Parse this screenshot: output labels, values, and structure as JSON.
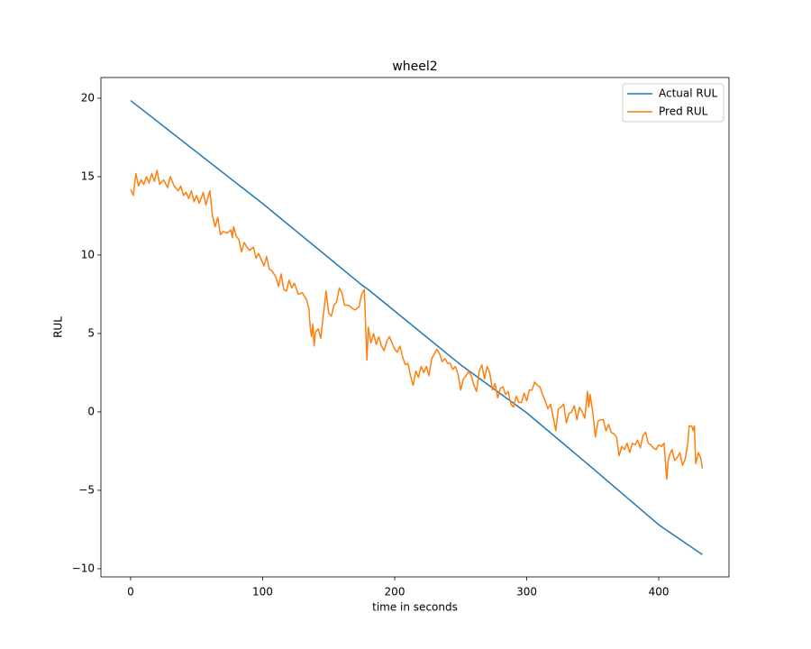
{
  "chart_data": {
    "type": "line",
    "title": "wheel2",
    "x_label": "time in seconds",
    "y_label": "RUL",
    "xlim": [
      -22.5,
      453.2
    ],
    "ylim": [
      -10.52,
      21.32
    ],
    "xticks": [
      0,
      100,
      200,
      300,
      400
    ],
    "yticks": [
      {
        "value": -10,
        "label": "−10"
      },
      {
        "value": -5,
        "label": "−5"
      },
      0,
      5,
      10,
      15,
      20
    ],
    "legend": "upper right",
    "series": [
      {
        "name": "Actual RUL",
        "color": "#1f77b4",
        "x": [
          0,
          100,
          175,
          180,
          250,
          300,
          350,
          400,
          433
        ],
        "values": [
          19.85,
          13.28,
          8.1,
          7.8,
          3.0,
          -0.06,
          -3.6,
          -7.2,
          -9.1
        ]
      },
      {
        "name": "Pred RUL",
        "color": "#ff7f0e",
        "x": [
          0,
          2,
          4,
          6,
          8,
          10,
          12,
          14,
          16,
          18,
          20,
          22,
          25,
          28,
          30,
          33,
          36,
          38,
          40,
          42,
          44,
          46,
          48,
          50,
          52,
          55,
          57,
          60,
          62,
          64,
          66,
          68,
          70,
          73,
          76,
          77,
          78,
          80,
          82,
          84,
          86,
          88,
          90,
          93,
          95,
          97,
          99,
          101,
          103,
          105,
          107,
          110,
          112,
          114,
          116,
          118,
          120,
          122,
          124,
          127,
          130,
          133,
          135,
          136,
          137,
          138,
          139,
          140,
          142,
          144,
          146,
          147,
          148,
          150,
          152,
          154,
          156,
          158,
          160,
          162,
          165,
          168,
          170,
          173,
          175,
          177,
          178,
          179,
          180,
          182,
          184,
          186,
          188,
          190,
          192,
          194,
          196,
          198,
          200,
          202,
          204,
          206,
          208,
          210,
          212,
          214,
          216,
          218,
          220,
          222,
          224,
          226,
          228,
          230,
          232,
          234,
          236,
          238,
          240,
          242,
          244,
          246,
          248,
          250,
          252,
          254,
          256,
          258,
          260,
          262,
          264,
          266,
          268,
          270,
          272,
          274,
          276,
          278,
          280,
          282,
          284,
          286,
          288,
          290,
          292,
          294,
          296,
          298,
          300,
          302,
          304,
          306,
          308,
          310,
          312,
          314,
          316,
          318,
          320,
          322,
          324,
          326,
          328,
          330,
          332,
          334,
          336,
          338,
          340,
          342,
          344,
          346,
          347,
          348,
          350,
          352,
          354,
          356,
          358,
          360,
          362,
          364,
          366,
          368,
          370,
          372,
          374,
          376,
          378,
          380,
          382,
          384,
          386,
          388,
          390,
          392,
          394,
          396,
          398,
          400,
          402,
          404,
          406,
          407,
          408,
          410,
          412,
          414,
          416,
          418,
          420,
          422,
          423,
          425,
          426,
          427,
          428,
          430,
          432,
          433
        ],
        "values": [
          14.2,
          13.8,
          15.2,
          14.4,
          14.8,
          14.5,
          15.0,
          14.6,
          15.2,
          14.7,
          15.4,
          14.5,
          14.8,
          14.3,
          15.0,
          14.4,
          14.1,
          14.4,
          13.8,
          14.0,
          13.6,
          14.1,
          13.4,
          13.8,
          13.3,
          14.0,
          13.2,
          14.1,
          12.5,
          11.8,
          12.4,
          11.3,
          11.5,
          11.4,
          11.6,
          11.1,
          11.8,
          11.2,
          11.0,
          10.2,
          10.8,
          10.5,
          10.3,
          10.5,
          9.8,
          10.1,
          9.7,
          9.3,
          9.9,
          9.1,
          9.0,
          8.6,
          8.0,
          8.8,
          7.8,
          7.7,
          8.4,
          7.9,
          8.2,
          7.5,
          7.6,
          7.2,
          6.6,
          5.4,
          4.8,
          5.6,
          4.2,
          5.1,
          5.3,
          4.7,
          6.2,
          6.9,
          7.7,
          6.3,
          6.1,
          6.8,
          7.0,
          7.9,
          7.6,
          6.8,
          6.8,
          6.6,
          6.5,
          6.7,
          7.5,
          7.8,
          5.4,
          3.3,
          5.4,
          4.4,
          5.0,
          4.3,
          4.8,
          4.2,
          3.9,
          4.5,
          4.8,
          4.4,
          4.0,
          3.8,
          4.2,
          3.5,
          3.0,
          3.1,
          2.3,
          1.7,
          2.6,
          2.2,
          2.9,
          2.5,
          2.9,
          2.3,
          3.4,
          3.7,
          4.0,
          3.7,
          3.2,
          3.4,
          3.1,
          3.1,
          2.7,
          2.9,
          2.4,
          1.4,
          2.1,
          2.3,
          2.6,
          2.3,
          1.7,
          1.3,
          2.6,
          3.0,
          2.1,
          2.9,
          2.5,
          1.4,
          1.8,
          0.9,
          1.5,
          1.6,
          1.1,
          1.3,
          0.5,
          0.3,
          1.0,
          0.6,
          0.6,
          1.2,
          0.7,
          1.4,
          1.4,
          1.9,
          1.7,
          1.6,
          1.1,
          0.7,
          0.2,
          0.5,
          -0.3,
          -1.2,
          0.2,
          0.3,
          0.5,
          -0.7,
          -0.1,
          0.0,
          0.4,
          -0.5,
          0.3,
          0.0,
          -0.4,
          1.3,
          0.3,
          1.1,
          0.0,
          -1.6,
          -0.6,
          -0.5,
          -0.5,
          -1.2,
          -0.8,
          -1.3,
          -1.4,
          -1.6,
          -2.8,
          -2.2,
          -2.4,
          -2.0,
          -2.6,
          -2.0,
          -2.1,
          -1.8,
          -2.3,
          -1.5,
          -1.3,
          -2.0,
          -2.1,
          -2.3,
          -2.4,
          -2.1,
          -2.2,
          -2.0,
          -4.3,
          -3.2,
          -2.8,
          -2.4,
          -3.1,
          -2.9,
          -2.6,
          -3.4,
          -3.0,
          -2.0,
          -0.9,
          -0.9,
          -1.2,
          -0.9,
          -3.3,
          -2.6,
          -3.0,
          -3.6
        ]
      }
    ]
  }
}
